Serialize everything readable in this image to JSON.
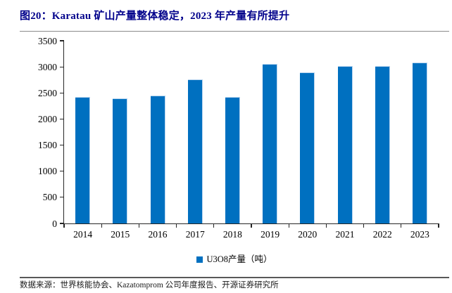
{
  "figure": {
    "title": "图20：Karatau 矿山产量整体稳定，2023 年产量有所提升",
    "source": "数据来源：世界核能协会、Kazatomprom 公司年度报告、开源证券研究所"
  },
  "legend": {
    "label": "U3O8产量（吨）"
  },
  "colors": {
    "bar": "#0070C0",
    "bar_edge": "#b9d5ef",
    "title": "#00008B",
    "axis": "#262626"
  },
  "chart_data": {
    "type": "bar",
    "title": "图20：Karatau 矿山产量整体稳定，2023 年产量有所提升",
    "series_name": "U3O8产量（吨）",
    "categories": [
      "2014",
      "2015",
      "2016",
      "2017",
      "2018",
      "2019",
      "2020",
      "2021",
      "2022",
      "2023"
    ],
    "values": [
      2430,
      2400,
      2450,
      2760,
      2420,
      3060,
      2900,
      3020,
      3010,
      3080
    ],
    "xlabel": "",
    "ylabel": "",
    "ylim": [
      0,
      3500
    ],
    "yticks": [
      0,
      500,
      1000,
      1500,
      2000,
      2500,
      3000,
      3500
    ],
    "grid": false,
    "legend_position": "bottom"
  }
}
